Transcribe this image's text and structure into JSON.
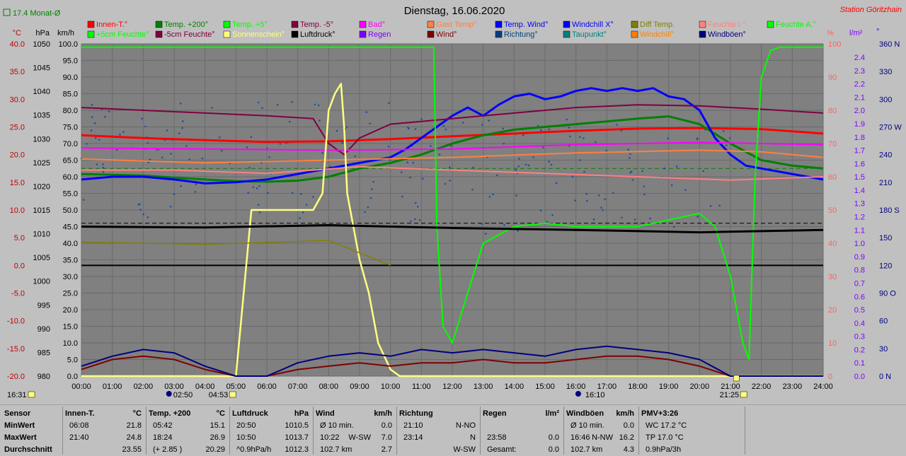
{
  "header": {
    "title": "Dienstag, 16.06.2020",
    "station": "Station Göritzhain",
    "month_avg": "17.4 Monat-Ø"
  },
  "legend": [
    {
      "label": "Innen-T.°",
      "color": "#ff0000"
    },
    {
      "label": "Temp. +200°",
      "color": "#008000"
    },
    {
      "label": "Temp. +5°",
      "color": "#00ff00"
    },
    {
      "label": "Temp. -5°",
      "color": "#800040"
    },
    {
      "label": "Bad°",
      "color": "#ff00ff"
    },
    {
      "label": "Gast Temp°",
      "color": "#ff8040"
    },
    {
      "label": "Temp. Wind°",
      "color": "#0000ff"
    },
    {
      "label": "Windchill X°",
      "color": "#0000ff"
    },
    {
      "label": "Diff Temp.",
      "color": "#808000"
    },
    {
      "label": "Feuchte I.°",
      "color": "#ff8080"
    },
    {
      "label": "Feuchte A.°",
      "color": "#00ff00"
    },
    {
      "label": "+5cm Feuchte°",
      "color": "#00ff00"
    },
    {
      "label": "-5cm Feuchte°",
      "color": "#800040"
    },
    {
      "label": "Sonnenschein°",
      "color": "#ffff80"
    },
    {
      "label": "Luftdruck°",
      "color": "#000000"
    },
    {
      "label": "Regen",
      "color": "#8000ff"
    },
    {
      "label": "Wind°",
      "color": "#800000"
    },
    {
      "label": "Richtung°",
      "color": "#004080"
    },
    {
      "label": "Taupunkt°",
      "color": "#008080"
    },
    {
      "label": "Windchill°",
      "color": "#ff8000"
    },
    {
      "label": "Windböen°",
      "color": "#000080"
    }
  ],
  "axes": {
    "temp": {
      "unit": "°C",
      "ticks": [
        "40.0",
        "35.0",
        "30.0",
        "25.0",
        "20.0",
        "15.0",
        "10.0",
        "5.0",
        "0.0",
        "-5.0",
        "-10.0",
        "-15.0",
        "-20.0"
      ],
      "range": [
        -20,
        40
      ]
    },
    "hpa": {
      "unit": "hPa",
      "ticks": [
        "1050",
        "1045",
        "1040",
        "1035",
        "1030",
        "1025",
        "1020",
        "1015",
        "1010",
        "1005",
        "1000",
        "995",
        "990",
        "985",
        "980"
      ],
      "range": [
        980,
        1050
      ]
    },
    "kmh": {
      "unit": "km/h",
      "ticks": [
        "100.0",
        "95.0",
        "90.0",
        "85.0",
        "80.0",
        "75.0",
        "70.0",
        "65.0",
        "60.0",
        "55.0",
        "50.0",
        "45.0",
        "40.0",
        "35.0",
        "30.0",
        "25.0",
        "20.0",
        "15.0",
        "10.0",
        "5.0",
        "0.0"
      ],
      "range": [
        0,
        100
      ]
    },
    "pct": {
      "unit": "%",
      "ticks": [
        "100",
        "90",
        "80",
        "70",
        "60",
        "50",
        "40",
        "30",
        "20",
        "10",
        "0"
      ],
      "range": [
        0,
        100
      ]
    },
    "lm2": {
      "unit": "l/m²",
      "ticks": [
        "2.4",
        "2.3",
        "2.2",
        "2.1",
        "2.0",
        "1.9",
        "1.8",
        "1.7",
        "1.6",
        "1.5",
        "1.4",
        "1.3",
        "1.2",
        "1.1",
        "1.0",
        "0.9",
        "0.8",
        "0.7",
        "0.6",
        "0.5",
        "0.4",
        "0.3",
        "0.2",
        "0.1",
        "0.0"
      ]
    },
    "deg": {
      "unit": "°",
      "ticks": [
        "360 N",
        "330",
        "300",
        "270 W",
        "240",
        "210",
        "180 S",
        "150",
        "120",
        "90 O",
        "60",
        "30",
        "0 N"
      ]
    },
    "time": [
      "00:00",
      "01:00",
      "02:00",
      "03:00",
      "04:00",
      "05:00",
      "06:00",
      "07:00",
      "08:00",
      "09:00",
      "10:00",
      "11:00",
      "12:00",
      "13:00",
      "14:00",
      "15:00",
      "16:00",
      "17:00",
      "18:00",
      "19:00",
      "20:00",
      "21:00",
      "22:00",
      "23:00",
      "24:00"
    ]
  },
  "time_markers": {
    "left": "16:31",
    "sunrise": "02:50",
    "moon": "04:53",
    "noon": "16:10",
    "sunset": "21:25"
  },
  "chart_data": {
    "type": "line",
    "title": "Dienstag, 16.06.2020",
    "x_unit": "hour",
    "xlim": [
      0,
      24
    ],
    "series": [
      {
        "name": "Innen-T.°",
        "axis": "temp",
        "color": "#ff0000",
        "width": 3,
        "x": [
          0,
          2,
          4,
          6,
          8,
          10,
          12,
          14,
          16,
          18,
          20,
          22,
          24
        ],
        "y": [
          23.5,
          23.0,
          22.6,
          22.3,
          22.4,
          22.8,
          23.3,
          23.8,
          24.3,
          24.7,
          24.8,
          24.6,
          23.8
        ]
      },
      {
        "name": "Temp. +200°",
        "axis": "temp",
        "color": "#008000",
        "width": 3,
        "x": [
          0,
          2,
          4,
          5,
          6,
          7,
          8,
          9,
          10,
          11,
          12,
          13,
          14,
          15,
          16,
          17,
          18,
          19,
          20,
          21,
          22,
          23,
          24
        ],
        "y": [
          16.5,
          16.2,
          15.5,
          15.2,
          15.1,
          15.3,
          16,
          17.5,
          18.5,
          20,
          22,
          23.5,
          24.5,
          25,
          25.5,
          26,
          26.5,
          26.9,
          25.5,
          22,
          19,
          18,
          17.5
        ]
      },
      {
        "name": "Temp. Wind°",
        "axis": "temp",
        "color": "#0000ff",
        "width": 3,
        "x": [
          0,
          1,
          2,
          3,
          4,
          5,
          6,
          7,
          8,
          9,
          10,
          10.5,
          11,
          11.5,
          12,
          12.5,
          13,
          13.5,
          14,
          14.5,
          15,
          15.5,
          16,
          16.5,
          17,
          17.5,
          18,
          18.5,
          19,
          19.5,
          20,
          20.5,
          21,
          21.5,
          22,
          23,
          24
        ],
        "y": [
          15.5,
          16,
          16,
          15.5,
          14.8,
          15,
          15.5,
          16.5,
          17.5,
          18.5,
          19.5,
          21,
          23,
          25,
          27,
          28.5,
          27,
          29,
          30.5,
          31,
          30,
          30.5,
          31.5,
          32,
          31.5,
          32,
          31.5,
          32,
          30.5,
          30,
          28,
          23,
          20,
          18,
          17.5,
          16.5,
          15.5
        ]
      },
      {
        "name": "Temp. -5°",
        "axis": "temp",
        "color": "#800040",
        "width": 2,
        "x": [
          0,
          2,
          4,
          6,
          7.5,
          8,
          8.5,
          9,
          10,
          12,
          14,
          16,
          18,
          20,
          22,
          24
        ],
        "y": [
          28.5,
          28,
          27.5,
          27,
          26.5,
          22,
          20,
          23,
          25.5,
          26.5,
          27.5,
          28.5,
          29,
          28.8,
          28.2,
          27.5
        ]
      },
      {
        "name": "Bad°",
        "axis": "temp",
        "color": "#ff00ff",
        "width": 2,
        "x": [
          0,
          4,
          8,
          12,
          16,
          20,
          24
        ],
        "y": [
          21.2,
          21,
          20.8,
          21,
          21.8,
          22.2,
          21.8
        ]
      },
      {
        "name": "Gast Temp°",
        "axis": "temp",
        "color": "#ff8040",
        "width": 2,
        "x": [
          0,
          4,
          8,
          12,
          16,
          20,
          22,
          24
        ],
        "y": [
          19.2,
          18.5,
          19,
          19.5,
          20.3,
          20.8,
          20.5,
          19.5
        ]
      },
      {
        "name": "Feuchte I.°",
        "axis": "pct",
        "color": "#ff8080",
        "width": 2,
        "x": [
          0,
          3,
          6,
          9,
          12,
          15,
          18,
          21,
          24
        ],
        "y": [
          62,
          62,
          61,
          63,
          62,
          61,
          60,
          59,
          60
        ]
      },
      {
        "name": "Feuchte A.°",
        "axis": "pct",
        "color": "#00ff00",
        "width": 2,
        "x": [
          0,
          11.4,
          11.5,
          11.7,
          12,
          12.5,
          13,
          14,
          15,
          16,
          17,
          18,
          19,
          19.5,
          20,
          20.5,
          21,
          21.4,
          21.6,
          21.8,
          22,
          22.3,
          22.6,
          24
        ],
        "y": [
          99,
          99,
          45,
          15,
          10,
          25,
          40,
          45,
          46,
          45,
          45,
          45,
          47,
          48,
          49,
          45,
          30,
          10,
          5,
          60,
          90,
          98,
          99,
          99
        ]
      },
      {
        "name": "Sonnenschein°",
        "axis": "kmh",
        "color": "#ffff80",
        "width": 2.5,
        "x": [
          0,
          5,
          5.2,
          5.5,
          6,
          6.5,
          7,
          7.5,
          7.8,
          8,
          8.2,
          8.4,
          8.5,
          8.6,
          9,
          9.3,
          9.6,
          10,
          10.3,
          24
        ],
        "y": [
          0,
          0,
          20,
          50,
          50,
          50,
          50,
          50,
          55,
          80,
          85,
          88,
          75,
          55,
          35,
          25,
          10,
          2,
          0,
          0
        ]
      },
      {
        "name": "Luftdruck°",
        "axis": "hpa",
        "color": "#000000",
        "width": 3,
        "x": [
          0,
          4,
          8,
          12,
          16,
          20,
          24
        ],
        "y": [
          1011.5,
          1011.3,
          1011.8,
          1011.2,
          1010.8,
          1010.3,
          1010.8
        ]
      },
      {
        "name": "Wind°",
        "axis": "kmh",
        "color": "#800000",
        "width": 2,
        "x": [
          0,
          1,
          2,
          3,
          4,
          5,
          6,
          7,
          8,
          9,
          10,
          11,
          12,
          13,
          14,
          15,
          16,
          17,
          18,
          19,
          20,
          21,
          22,
          24
        ],
        "y": [
          2,
          5,
          6,
          5,
          2,
          0,
          0,
          2,
          3,
          4,
          3,
          4,
          4,
          5,
          4,
          4,
          5,
          6,
          6,
          5,
          3,
          0,
          0,
          0
        ]
      },
      {
        "name": "Windböen°",
        "axis": "kmh",
        "color": "#000080",
        "width": 2,
        "x": [
          0,
          1,
          2,
          3,
          4,
          5,
          6,
          7,
          8,
          9,
          10,
          11,
          12,
          13,
          14,
          15,
          16,
          17,
          18,
          19,
          20,
          21,
          22,
          24
        ],
        "y": [
          3,
          6,
          8,
          7,
          3,
          0,
          0,
          4,
          6,
          7,
          6,
          8,
          7,
          8,
          7,
          6,
          8,
          9,
          8,
          7,
          5,
          0,
          0,
          0
        ]
      },
      {
        "name": "Diff Temp.",
        "axis": "temp",
        "color": "#808000",
        "width": 1.5,
        "x": [
          0,
          4,
          8,
          10
        ],
        "y": [
          4.2,
          3.8,
          4.5,
          0
        ]
      }
    ],
    "stats": {
      "headers": [
        "Sensor",
        "MinWert",
        "MaxWert",
        "Durchschnitt"
      ],
      "columns": [
        {
          "title": "Innen-T.",
          "unit": "°C",
          "min_time": "06:08",
          "min": "21.8",
          "max_time": "21:40",
          "max": "24.8",
          "avg": "23.55"
        },
        {
          "title": "Temp. +200",
          "unit": "°C",
          "min_time": "05:42",
          "min": "15.1",
          "max_time": "18:24",
          "max": "26.9",
          "avg_note": "(+ 2.85 )",
          "avg": "20.29"
        },
        {
          "title": "Luftdruck",
          "unit": "hPa",
          "min_time": "20:50",
          "min": "1010.5",
          "max_time": "10:50",
          "max": "1013.7",
          "avg_note": "^0.9hPa/h",
          "avg": "1012.3"
        },
        {
          "title": "Wind",
          "unit": "km/h",
          "min_time": "Ø 10 min.",
          "min": "0.0",
          "max_time": "10:22",
          "max_dir": "W-SW",
          "max": "7.0",
          "avg_note": "102.7 km",
          "avg": "2.7"
        },
        {
          "title": "Richtung",
          "unit": "",
          "min_time": "21:10",
          "min": "N-NO",
          "max_time": "23:14",
          "max": "N",
          "avg": "W-SW"
        },
        {
          "title": "Regen",
          "unit": "l/m²",
          "min": "",
          "max_time": "23:58",
          "max": "0.0",
          "avg_note": "Gesamt:",
          "avg": "0.0"
        },
        {
          "title": "Windböen",
          "unit": "km/h",
          "min_time": "Ø 10 min.",
          "min": "0.0",
          "max_time": "16:46",
          "max_dir": "N-NW",
          "max": "16.2",
          "avg_note": "102.7 km",
          "avg": "4.3"
        },
        {
          "title": "PMV+3:26",
          "unit": "",
          "min": "WC 17.2 °C",
          "max": "TP 17.0 °C",
          "avg": "0.9hPa/3h"
        }
      ]
    }
  }
}
